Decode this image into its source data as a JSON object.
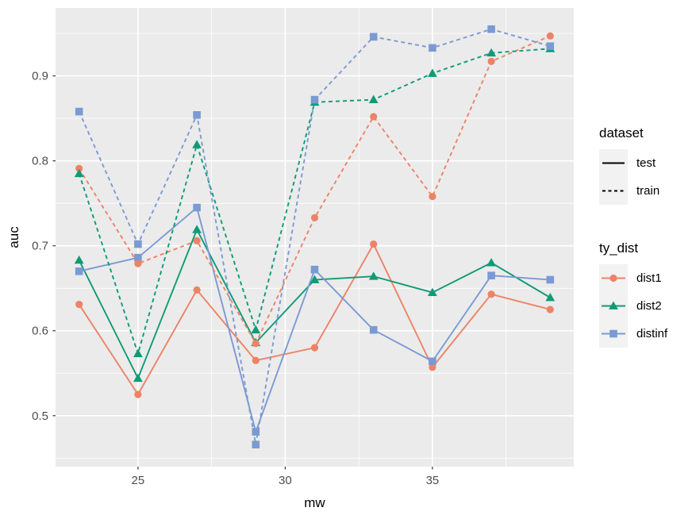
{
  "chart_data": {
    "type": "line",
    "x": [
      23,
      25,
      27,
      29,
      31,
      33,
      35,
      37,
      39
    ],
    "series": [
      {
        "name": "test dist1",
        "dataset": "test",
        "ty_dist": "dist1",
        "marker": "circle",
        "linestyle": "solid",
        "values": [
          0.631,
          0.525,
          0.648,
          0.565,
          0.58,
          0.702,
          0.557,
          0.643,
          0.625
        ]
      },
      {
        "name": "test dist2",
        "dataset": "test",
        "ty_dist": "dist2",
        "marker": "triangle",
        "linestyle": "solid",
        "values": [
          0.683,
          0.544,
          0.719,
          0.586,
          0.66,
          0.664,
          0.645,
          0.68,
          0.639
        ]
      },
      {
        "name": "test distinf",
        "dataset": "test",
        "ty_dist": "distinf",
        "marker": "square",
        "linestyle": "solid",
        "values": [
          0.67,
          0.686,
          0.745,
          0.481,
          0.672,
          0.601,
          0.564,
          0.665,
          0.66
        ]
      },
      {
        "name": "train dist1",
        "dataset": "train",
        "ty_dist": "dist1",
        "marker": "circle",
        "linestyle": "dashed",
        "values": [
          0.791,
          0.679,
          0.706,
          0.585,
          0.733,
          0.852,
          0.758,
          0.917,
          0.947
        ]
      },
      {
        "name": "train dist2",
        "dataset": "train",
        "ty_dist": "dist2",
        "marker": "triangle",
        "linestyle": "dashed",
        "values": [
          0.785,
          0.573,
          0.819,
          0.601,
          0.869,
          0.872,
          0.903,
          0.927,
          0.932
        ]
      },
      {
        "name": "train distinf",
        "dataset": "train",
        "ty_dist": "distinf",
        "marker": "square",
        "linestyle": "dashed",
        "values": [
          0.858,
          0.702,
          0.854,
          0.466,
          0.872,
          0.946,
          0.933,
          0.955,
          0.935
        ]
      }
    ],
    "title": "",
    "xlabel": "mw",
    "ylabel": "auc",
    "x_ticks": [
      25,
      30,
      35
    ],
    "y_ticks": [
      0.5,
      0.6,
      0.7,
      0.8,
      0.9
    ],
    "x_minor_ticks": [
      27.5,
      32.5,
      37.5
    ],
    "y_minor_ticks": [
      0.45,
      0.55,
      0.65,
      0.75,
      0.85,
      0.95
    ],
    "xlim": [
      22.2,
      39.8
    ],
    "ylim": [
      0.44,
      0.98
    ],
    "grid": "on",
    "legend_position": "right",
    "colors": {
      "dist1": "#ED8366",
      "dist2": "#0F9B76",
      "distinf": "#7B9AD3"
    },
    "panel_bg": "#EBEBEB",
    "grid_color": "#FFFFFF",
    "tick_label_color": "#4D4D4D",
    "legend_key_bg": "#F2F2F2"
  },
  "legend": {
    "dataset": {
      "title": "dataset",
      "items": [
        {
          "label": "test",
          "style": "solid"
        },
        {
          "label": "train",
          "style": "dashed"
        }
      ]
    },
    "ty_dist": {
      "title": "ty_dist",
      "items": [
        {
          "label": "dist1",
          "key": "dist1"
        },
        {
          "label": "dist2",
          "key": "dist2"
        },
        {
          "label": "distinf",
          "key": "distinf"
        }
      ]
    }
  }
}
